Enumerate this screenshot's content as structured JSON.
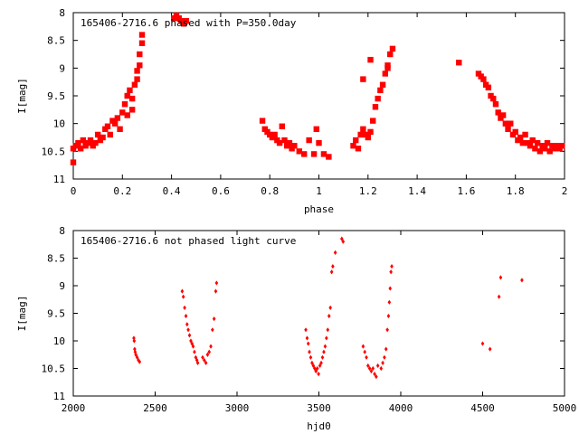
{
  "chart_data": [
    {
      "type": "scatter",
      "title": "165406-2716.6 phased with P=350.0day",
      "xlabel": "phase",
      "ylabel": "I[mag]",
      "xlim": [
        0,
        2
      ],
      "ylim": [
        11,
        8
      ],
      "y_inverted": true,
      "x_ticks": [
        "0",
        "0.2",
        "0.4",
        "0.6",
        "0.8",
        "1",
        "1.2",
        "1.4",
        "1.6",
        "1.8",
        "2"
      ],
      "x_tick_values": [
        0,
        0.2,
        0.4,
        0.6,
        0.8,
        1.0,
        1.2,
        1.4,
        1.6,
        1.8,
        2.0
      ],
      "y_ticks": [
        "8",
        "8.5",
        "9",
        "9.5",
        "10",
        "10.5",
        "11"
      ],
      "y_tick_values": [
        8,
        8.5,
        9,
        9.5,
        10,
        10.5,
        11
      ],
      "color": "#ff0000",
      "marker": "large",
      "points": [
        [
          0.0,
          10.45
        ],
        [
          0.0,
          10.7
        ],
        [
          0.01,
          10.4
        ],
        [
          0.02,
          10.35
        ],
        [
          0.03,
          10.45
        ],
        [
          0.04,
          10.3
        ],
        [
          0.05,
          10.4
        ],
        [
          0.06,
          10.35
        ],
        [
          0.07,
          10.3
        ],
        [
          0.08,
          10.4
        ],
        [
          0.09,
          10.35
        ],
        [
          0.1,
          10.2
        ],
        [
          0.11,
          10.3
        ],
        [
          0.12,
          10.25
        ],
        [
          0.13,
          10.1
        ],
        [
          0.14,
          10.05
        ],
        [
          0.15,
          10.2
        ],
        [
          0.16,
          9.95
        ],
        [
          0.17,
          10.0
        ],
        [
          0.18,
          9.9
        ],
        [
          0.19,
          10.1
        ],
        [
          0.2,
          9.8
        ],
        [
          0.21,
          9.65
        ],
        [
          0.22,
          9.5
        ],
        [
          0.22,
          9.85
        ],
        [
          0.23,
          9.4
        ],
        [
          0.24,
          9.55
        ],
        [
          0.24,
          9.75
        ],
        [
          0.25,
          9.3
        ],
        [
          0.26,
          9.2
        ],
        [
          0.26,
          9.05
        ],
        [
          0.27,
          8.95
        ],
        [
          0.27,
          8.75
        ],
        [
          0.28,
          8.55
        ],
        [
          0.28,
          8.4
        ],
        [
          0.41,
          8.1
        ],
        [
          0.42,
          8.05
        ],
        [
          0.43,
          8.1
        ],
        [
          0.44,
          8.15
        ],
        [
          0.45,
          8.2
        ],
        [
          0.46,
          8.15
        ],
        [
          0.77,
          9.95
        ],
        [
          0.78,
          10.1
        ],
        [
          0.79,
          10.15
        ],
        [
          0.8,
          10.2
        ],
        [
          0.81,
          10.25
        ],
        [
          0.82,
          10.2
        ],
        [
          0.83,
          10.3
        ],
        [
          0.84,
          10.35
        ],
        [
          0.85,
          10.05
        ],
        [
          0.86,
          10.3
        ],
        [
          0.87,
          10.4
        ],
        [
          0.88,
          10.35
        ],
        [
          0.89,
          10.45
        ],
        [
          0.9,
          10.4
        ],
        [
          0.92,
          10.5
        ],
        [
          0.94,
          10.55
        ],
        [
          0.96,
          10.3
        ],
        [
          0.98,
          10.55
        ],
        [
          0.99,
          10.1
        ],
        [
          1.0,
          10.35
        ],
        [
          1.02,
          10.55
        ],
        [
          1.04,
          10.6
        ],
        [
          1.14,
          10.4
        ],
        [
          1.15,
          10.3
        ],
        [
          1.16,
          10.45
        ],
        [
          1.17,
          10.2
        ],
        [
          1.18,
          9.2
        ],
        [
          1.18,
          10.1
        ],
        [
          1.19,
          10.2
        ],
        [
          1.2,
          10.25
        ],
        [
          1.21,
          8.85
        ],
        [
          1.21,
          10.15
        ],
        [
          1.22,
          9.95
        ],
        [
          1.23,
          9.7
        ],
        [
          1.24,
          9.55
        ],
        [
          1.25,
          9.4
        ],
        [
          1.26,
          9.3
        ],
        [
          1.27,
          9.1
        ],
        [
          1.28,
          8.95
        ],
        [
          1.28,
          9.0
        ],
        [
          1.29,
          8.75
        ],
        [
          1.3,
          8.65
        ],
        [
          1.57,
          8.9
        ],
        [
          1.65,
          9.1
        ],
        [
          1.66,
          9.15
        ],
        [
          1.67,
          9.2
        ],
        [
          1.68,
          9.3
        ],
        [
          1.69,
          9.35
        ],
        [
          1.7,
          9.5
        ],
        [
          1.71,
          9.55
        ],
        [
          1.72,
          9.65
        ],
        [
          1.73,
          9.8
        ],
        [
          1.74,
          9.9
        ],
        [
          1.75,
          9.85
        ],
        [
          1.76,
          10.0
        ],
        [
          1.77,
          10.1
        ],
        [
          1.78,
          10.0
        ],
        [
          1.79,
          10.2
        ],
        [
          1.8,
          10.15
        ],
        [
          1.81,
          10.3
        ],
        [
          1.82,
          10.25
        ],
        [
          1.83,
          10.35
        ],
        [
          1.84,
          10.2
        ],
        [
          1.85,
          10.35
        ],
        [
          1.86,
          10.4
        ],
        [
          1.87,
          10.3
        ],
        [
          1.88,
          10.45
        ],
        [
          1.89,
          10.35
        ],
        [
          1.9,
          10.5
        ],
        [
          1.91,
          10.4
        ],
        [
          1.92,
          10.45
        ],
        [
          1.93,
          10.35
        ],
        [
          1.94,
          10.5
        ],
        [
          1.95,
          10.4
        ],
        [
          1.96,
          10.45
        ],
        [
          1.97,
          10.4
        ],
        [
          1.98,
          10.45
        ],
        [
          1.99,
          10.4
        ]
      ]
    },
    {
      "type": "scatter",
      "title": "165406-2716.6 not phased light curve",
      "xlabel": "hjd0",
      "ylabel": "I[mag]",
      "xlim": [
        2000,
        5000
      ],
      "ylim": [
        11,
        8
      ],
      "y_inverted": true,
      "x_ticks": [
        "2000",
        "2500",
        "3000",
        "3500",
        "4000",
        "4500",
        "5000"
      ],
      "x_tick_values": [
        2000,
        2500,
        3000,
        3500,
        4000,
        4500,
        5000
      ],
      "y_ticks": [
        "8",
        "8.5",
        "9",
        "9.5",
        "10",
        "10.5",
        "11"
      ],
      "y_tick_values": [
        8,
        8.5,
        9,
        9.5,
        10,
        10.5,
        11
      ],
      "color": "#ff0000",
      "marker": "small",
      "points": [
        [
          2370,
          9.95
        ],
        [
          2372,
          10.0
        ],
        [
          2375,
          10.15
        ],
        [
          2378,
          10.2
        ],
        [
          2382,
          10.25
        ],
        [
          2390,
          10.3
        ],
        [
          2398,
          10.35
        ],
        [
          2405,
          10.38
        ],
        [
          2665,
          9.1
        ],
        [
          2672,
          9.2
        ],
        [
          2680,
          9.4
        ],
        [
          2688,
          9.55
        ],
        [
          2695,
          9.7
        ],
        [
          2702,
          9.8
        ],
        [
          2710,
          9.9
        ],
        [
          2718,
          10.0
        ],
        [
          2725,
          10.05
        ],
        [
          2732,
          10.1
        ],
        [
          2740,
          10.2
        ],
        [
          2748,
          10.3
        ],
        [
          2755,
          10.35
        ],
        [
          2760,
          10.4
        ],
        [
          2790,
          10.3
        ],
        [
          2800,
          10.35
        ],
        [
          2810,
          10.4
        ],
        [
          2820,
          10.25
        ],
        [
          2830,
          10.2
        ],
        [
          2840,
          10.1
        ],
        [
          2850,
          9.8
        ],
        [
          2860,
          9.6
        ],
        [
          2870,
          9.1
        ],
        [
          2875,
          8.95
        ],
        [
          3420,
          9.8
        ],
        [
          3428,
          9.95
        ],
        [
          3435,
          10.05
        ],
        [
          3442,
          10.2
        ],
        [
          3450,
          10.3
        ],
        [
          3458,
          10.4
        ],
        [
          3466,
          10.45
        ],
        [
          3474,
          10.5
        ],
        [
          3482,
          10.55
        ],
        [
          3490,
          10.5
        ],
        [
          3498,
          10.6
        ],
        [
          3506,
          10.45
        ],
        [
          3514,
          10.4
        ],
        [
          3522,
          10.3
        ],
        [
          3530,
          10.2
        ],
        [
          3538,
          10.1
        ],
        [
          3546,
          9.95
        ],
        [
          3554,
          9.8
        ],
        [
          3562,
          9.55
        ],
        [
          3570,
          9.4
        ],
        [
          3578,
          8.75
        ],
        [
          3585,
          8.65
        ],
        [
          3600,
          8.4
        ],
        [
          3640,
          8.15
        ],
        [
          3648,
          8.2
        ],
        [
          3770,
          10.1
        ],
        [
          3780,
          10.2
        ],
        [
          3790,
          10.3
        ],
        [
          3800,
          10.45
        ],
        [
          3810,
          10.5
        ],
        [
          3820,
          10.55
        ],
        [
          3830,
          10.5
        ],
        [
          3840,
          10.6
        ],
        [
          3850,
          10.65
        ],
        [
          3860,
          10.45
        ],
        [
          3880,
          10.5
        ],
        [
          3890,
          10.4
        ],
        [
          3900,
          10.3
        ],
        [
          3910,
          10.15
        ],
        [
          3918,
          9.8
        ],
        [
          3925,
          9.55
        ],
        [
          3930,
          9.3
        ],
        [
          3935,
          9.05
        ],
        [
          3940,
          8.75
        ],
        [
          3945,
          8.65
        ],
        [
          4500,
          10.05
        ],
        [
          4545,
          10.15
        ],
        [
          4600,
          9.2
        ],
        [
          4610,
          8.85
        ],
        [
          4740,
          8.9
        ]
      ]
    }
  ]
}
